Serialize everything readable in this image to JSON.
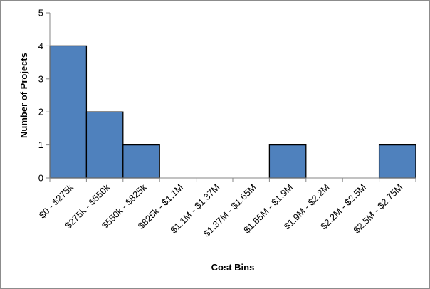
{
  "chart_data": {
    "type": "bar",
    "title": "",
    "xlabel": "Cost Bins",
    "ylabel": "Number of Projects",
    "categories": [
      "$0 - $275k",
      "$275k - $550k",
      "$550k - $825k",
      "$825k - $1.1M",
      "$1.1M - $1.37M",
      "$1.37M - $1.65M",
      "$1.65M - $1.9M",
      "$1.9M - $2.2M",
      "$2.2M - $2.5M",
      "$2.5M - $2.75M"
    ],
    "values": [
      4,
      2,
      1,
      0,
      0,
      0,
      1,
      0,
      0,
      1
    ],
    "ylim": [
      0,
      5
    ],
    "yticks": [
      "0",
      "1",
      "2",
      "3",
      "4",
      "5"
    ],
    "grid": false,
    "legend": "none",
    "bar_color": "#4f81bd",
    "bar_edge_color": "#000000"
  }
}
